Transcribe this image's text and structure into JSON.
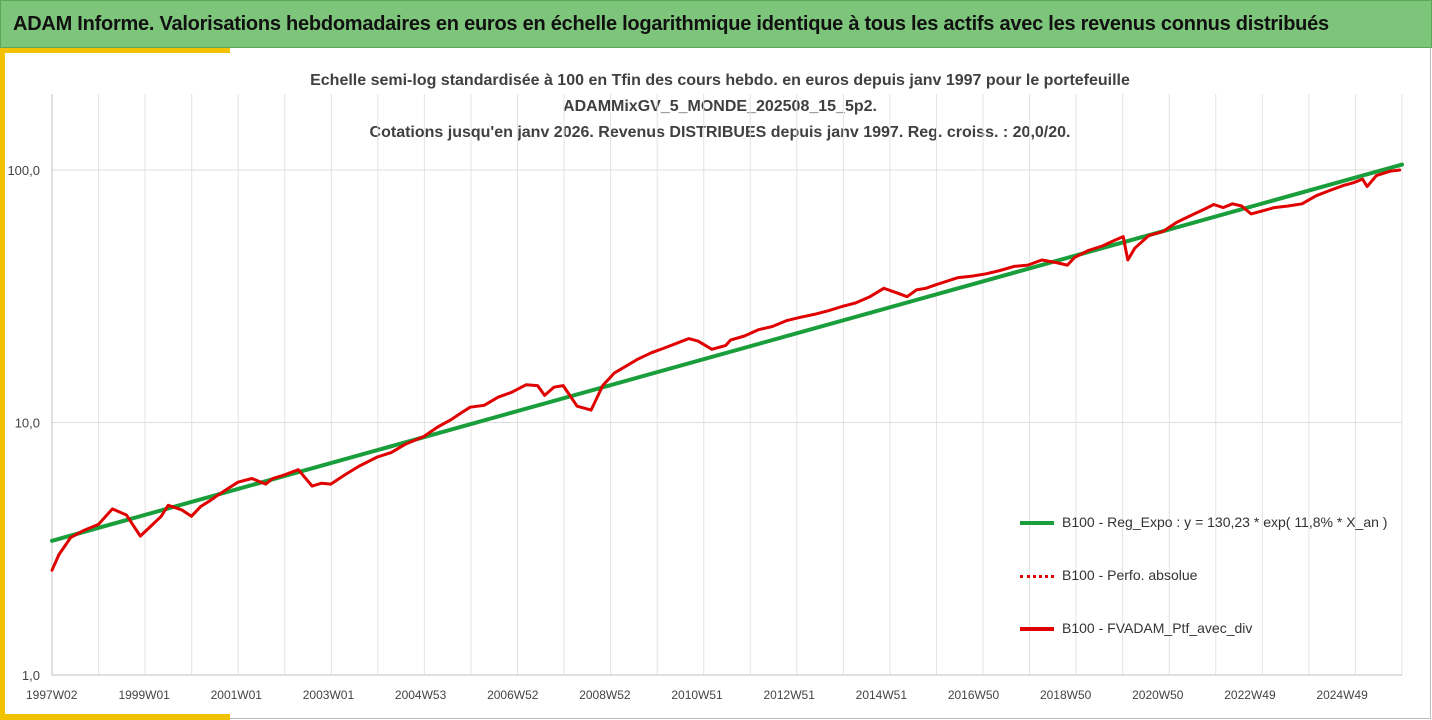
{
  "header": {
    "title": "ADAM Informe. Valorisations hebdomadaires en euros en échelle logarithmique identique à tous les actifs avec les revenus connus distribués"
  },
  "chart_data": {
    "type": "line",
    "title_lines": [
      "Echelle semi-log standardisée à 100 en Tfin des cours hebdo.  en euros depuis janv 1997 pour le portefeuille",
      "ADAMMixGV_5_MONDE_202508_15_5p2.",
      "Cotations  jusqu'en janv 2026. Revenus DISTRIBUES depuis janv 1997. Reg. croiss. : 20,0/20."
    ],
    "y_scale": "log",
    "ylim": [
      1,
      100
    ],
    "y_ticks": [
      "1,0",
      "10,0",
      "100,0"
    ],
    "x_range": [
      1997.0,
      2026.05
    ],
    "x_tick_labels": [
      "1997W02",
      "1999W01",
      "2001W01",
      "2003W01",
      "2004W53",
      "2006W52",
      "2008W52",
      "2010W51",
      "2012W51",
      "2014W51",
      "2016W50",
      "2018W50",
      "2020W50",
      "2022W49",
      "2024W49"
    ],
    "grid": true,
    "legend_position": "right",
    "series": [
      {
        "name": "B100 - Reg_Expo : y = 130,23 * exp( 11,8% *  X_an )",
        "color": "#1a9e3c",
        "style": "solid",
        "x": [
          1997.0,
          2026.05
        ],
        "values": [
          3.4,
          105
        ]
      },
      {
        "name": "B100 - Perfo. absolue",
        "color": "#e00000",
        "style": "dotted",
        "x": [],
        "values": []
      },
      {
        "name": "B100 - FVADAM_Ptf_avec_div",
        "color": "#e00000",
        "style": "solid",
        "x": [
          1997.0,
          1997.15,
          1997.4,
          1997.7,
          1998.0,
          1998.3,
          1998.6,
          1998.9,
          1999.2,
          1999.35,
          1999.5,
          1999.8,
          2000.0,
          2000.2,
          2000.4,
          2000.6,
          2000.8,
          2001.0,
          2001.3,
          2001.6,
          2001.75,
          2002.0,
          2002.3,
          2002.6,
          2002.8,
          2003.0,
          2003.3,
          2003.6,
          2004.0,
          2004.3,
          2004.6,
          2005.0,
          2005.3,
          2005.6,
          2005.8,
          2006.0,
          2006.3,
          2006.6,
          2006.9,
          2007.2,
          2007.45,
          2007.6,
          2007.8,
          2008.0,
          2008.3,
          2008.6,
          2008.85,
          2009.1,
          2009.3,
          2009.6,
          2009.9,
          2010.2,
          2010.5,
          2010.7,
          2010.9,
          2011.2,
          2011.5,
          2011.6,
          2011.9,
          2012.2,
          2012.5,
          2012.8,
          2013.1,
          2013.4,
          2013.7,
          2014.0,
          2014.3,
          2014.6,
          2014.9,
          2015.2,
          2015.4,
          2015.6,
          2015.8,
          2016.0,
          2016.2,
          2016.5,
          2016.8,
          2017.1,
          2017.4,
          2017.7,
          2018.0,
          2018.3,
          2018.6,
          2018.85,
          2019.0,
          2019.3,
          2019.6,
          2019.9,
          2020.05,
          2020.15,
          2020.3,
          2020.6,
          2020.9,
          2021.2,
          2021.5,
          2021.8,
          2022.0,
          2022.2,
          2022.4,
          2022.6,
          2022.8,
          2023.0,
          2023.3,
          2023.6,
          2023.9,
          2024.2,
          2024.5,
          2024.8,
          2025.0,
          2025.2,
          2025.3,
          2025.5,
          2025.8,
          2026.0
        ],
        "values": [
          2.6,
          3.0,
          3.5,
          3.75,
          3.95,
          4.55,
          4.3,
          3.55,
          4.0,
          4.25,
          4.7,
          4.5,
          4.25,
          4.65,
          4.9,
          5.2,
          5.5,
          5.8,
          6.0,
          5.7,
          6.0,
          6.2,
          6.5,
          5.6,
          5.75,
          5.7,
          6.2,
          6.7,
          7.3,
          7.6,
          8.2,
          8.8,
          9.6,
          10.3,
          10.9,
          11.5,
          11.7,
          12.6,
          13.2,
          14.1,
          14.0,
          12.8,
          13.8,
          14.0,
          11.6,
          11.2,
          14.0,
          15.7,
          16.5,
          17.8,
          18.9,
          19.8,
          20.8,
          21.5,
          21.0,
          19.5,
          20.2,
          21.2,
          22.0,
          23.3,
          24.0,
          25.3,
          26.1,
          26.8,
          27.7,
          28.8,
          29.8,
          31.5,
          34.0,
          32.5,
          31.5,
          33.5,
          34.0,
          35.0,
          36.0,
          37.5,
          38.0,
          38.8,
          40.0,
          41.5,
          42.0,
          44.0,
          43.0,
          42.0,
          45.0,
          48.0,
          50.0,
          53.0,
          54.5,
          44.0,
          49.0,
          55.0,
          57.0,
          62.0,
          66.0,
          70.0,
          73.0,
          71.0,
          73.5,
          72.0,
          67.0,
          68.5,
          71.0,
          72.0,
          73.5,
          79.0,
          83.0,
          87.0,
          89.0,
          92.0,
          86.0,
          95.0,
          99.0,
          100.0
        ]
      }
    ]
  }
}
